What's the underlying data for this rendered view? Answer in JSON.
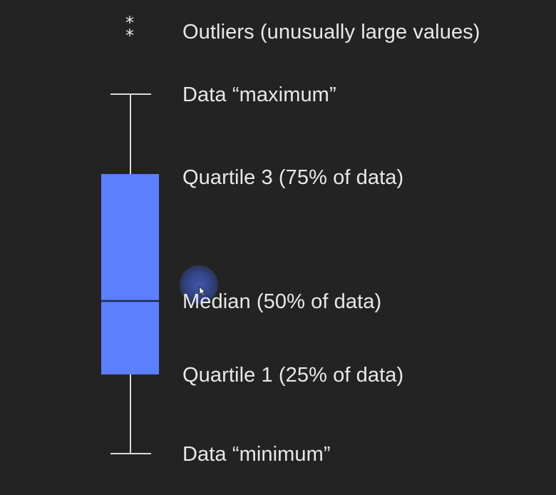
{
  "diagram": {
    "labels": {
      "outliers": "Outliers (unusually large values)",
      "maximum": "Data “maximum”",
      "quartile3": "Quartile 3 (75% of data)",
      "median": "Median (50% of data)",
      "quartile1": "Quartile 1 (25% of data)",
      "minimum": "Data “minimum”"
    },
    "outlier_symbol": "*",
    "colors": {
      "background": "#232323",
      "box_fill": "#5b80ff",
      "lines": "#d9d9d9",
      "text": "#e8e8e8"
    },
    "icons": {
      "cursor": "mouse-pointer-icon"
    }
  }
}
